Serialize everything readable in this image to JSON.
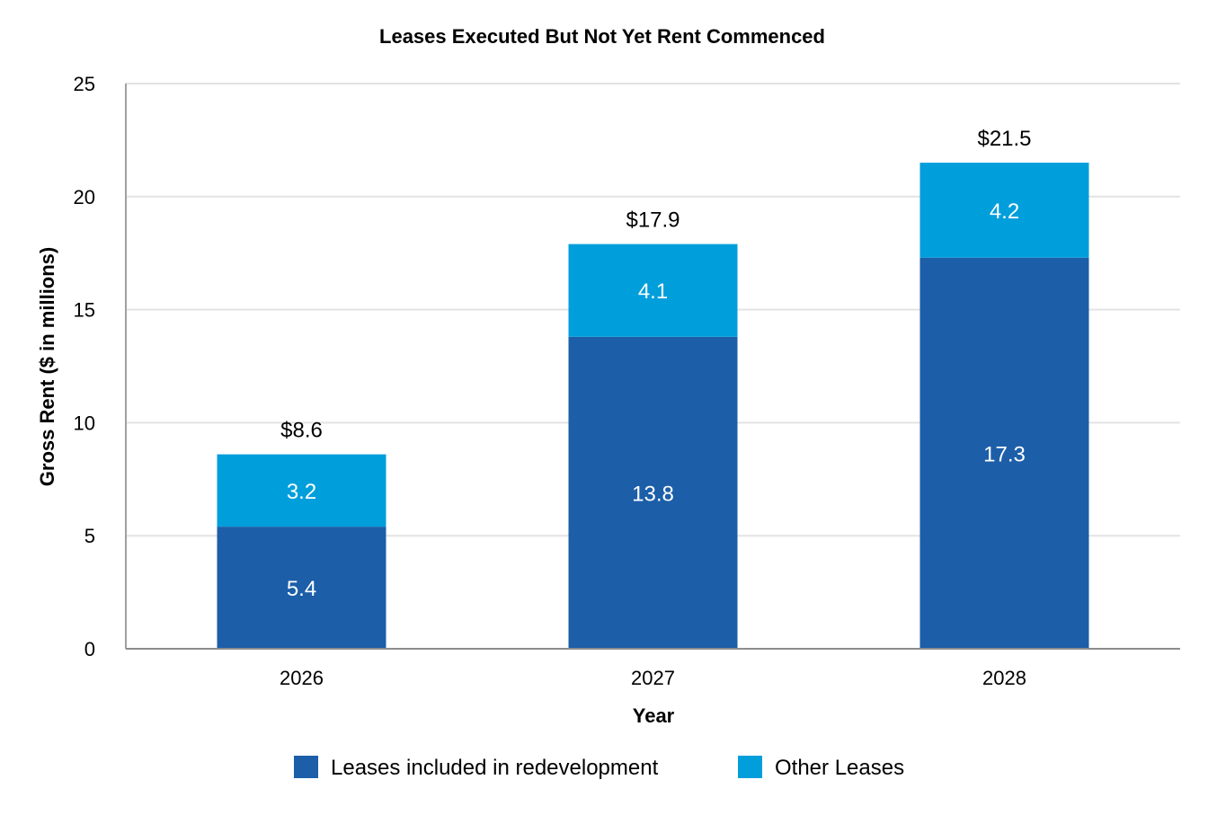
{
  "chart_data": {
    "type": "bar",
    "stacked": true,
    "title": "Leases Executed But Not Yet Rent Commenced",
    "xlabel": "Year",
    "ylabel": "Gross Rent ($ in millions)",
    "categories": [
      "2026",
      "2027",
      "2028"
    ],
    "ylim": [
      0,
      25
    ],
    "yticks": [
      0,
      5,
      10,
      15,
      20,
      25
    ],
    "grid": true,
    "legend_position": "bottom",
    "series": [
      {
        "name": "Leases included in redevelopment",
        "values": [
          5.4,
          13.8,
          17.3
        ],
        "color": "#1c5ea8"
      },
      {
        "name": "Other Leases",
        "values": [
          3.2,
          4.1,
          4.2
        ],
        "color": "#009edb"
      }
    ],
    "totals": [
      "$8.6",
      "$17.9",
      "$21.5"
    ]
  }
}
